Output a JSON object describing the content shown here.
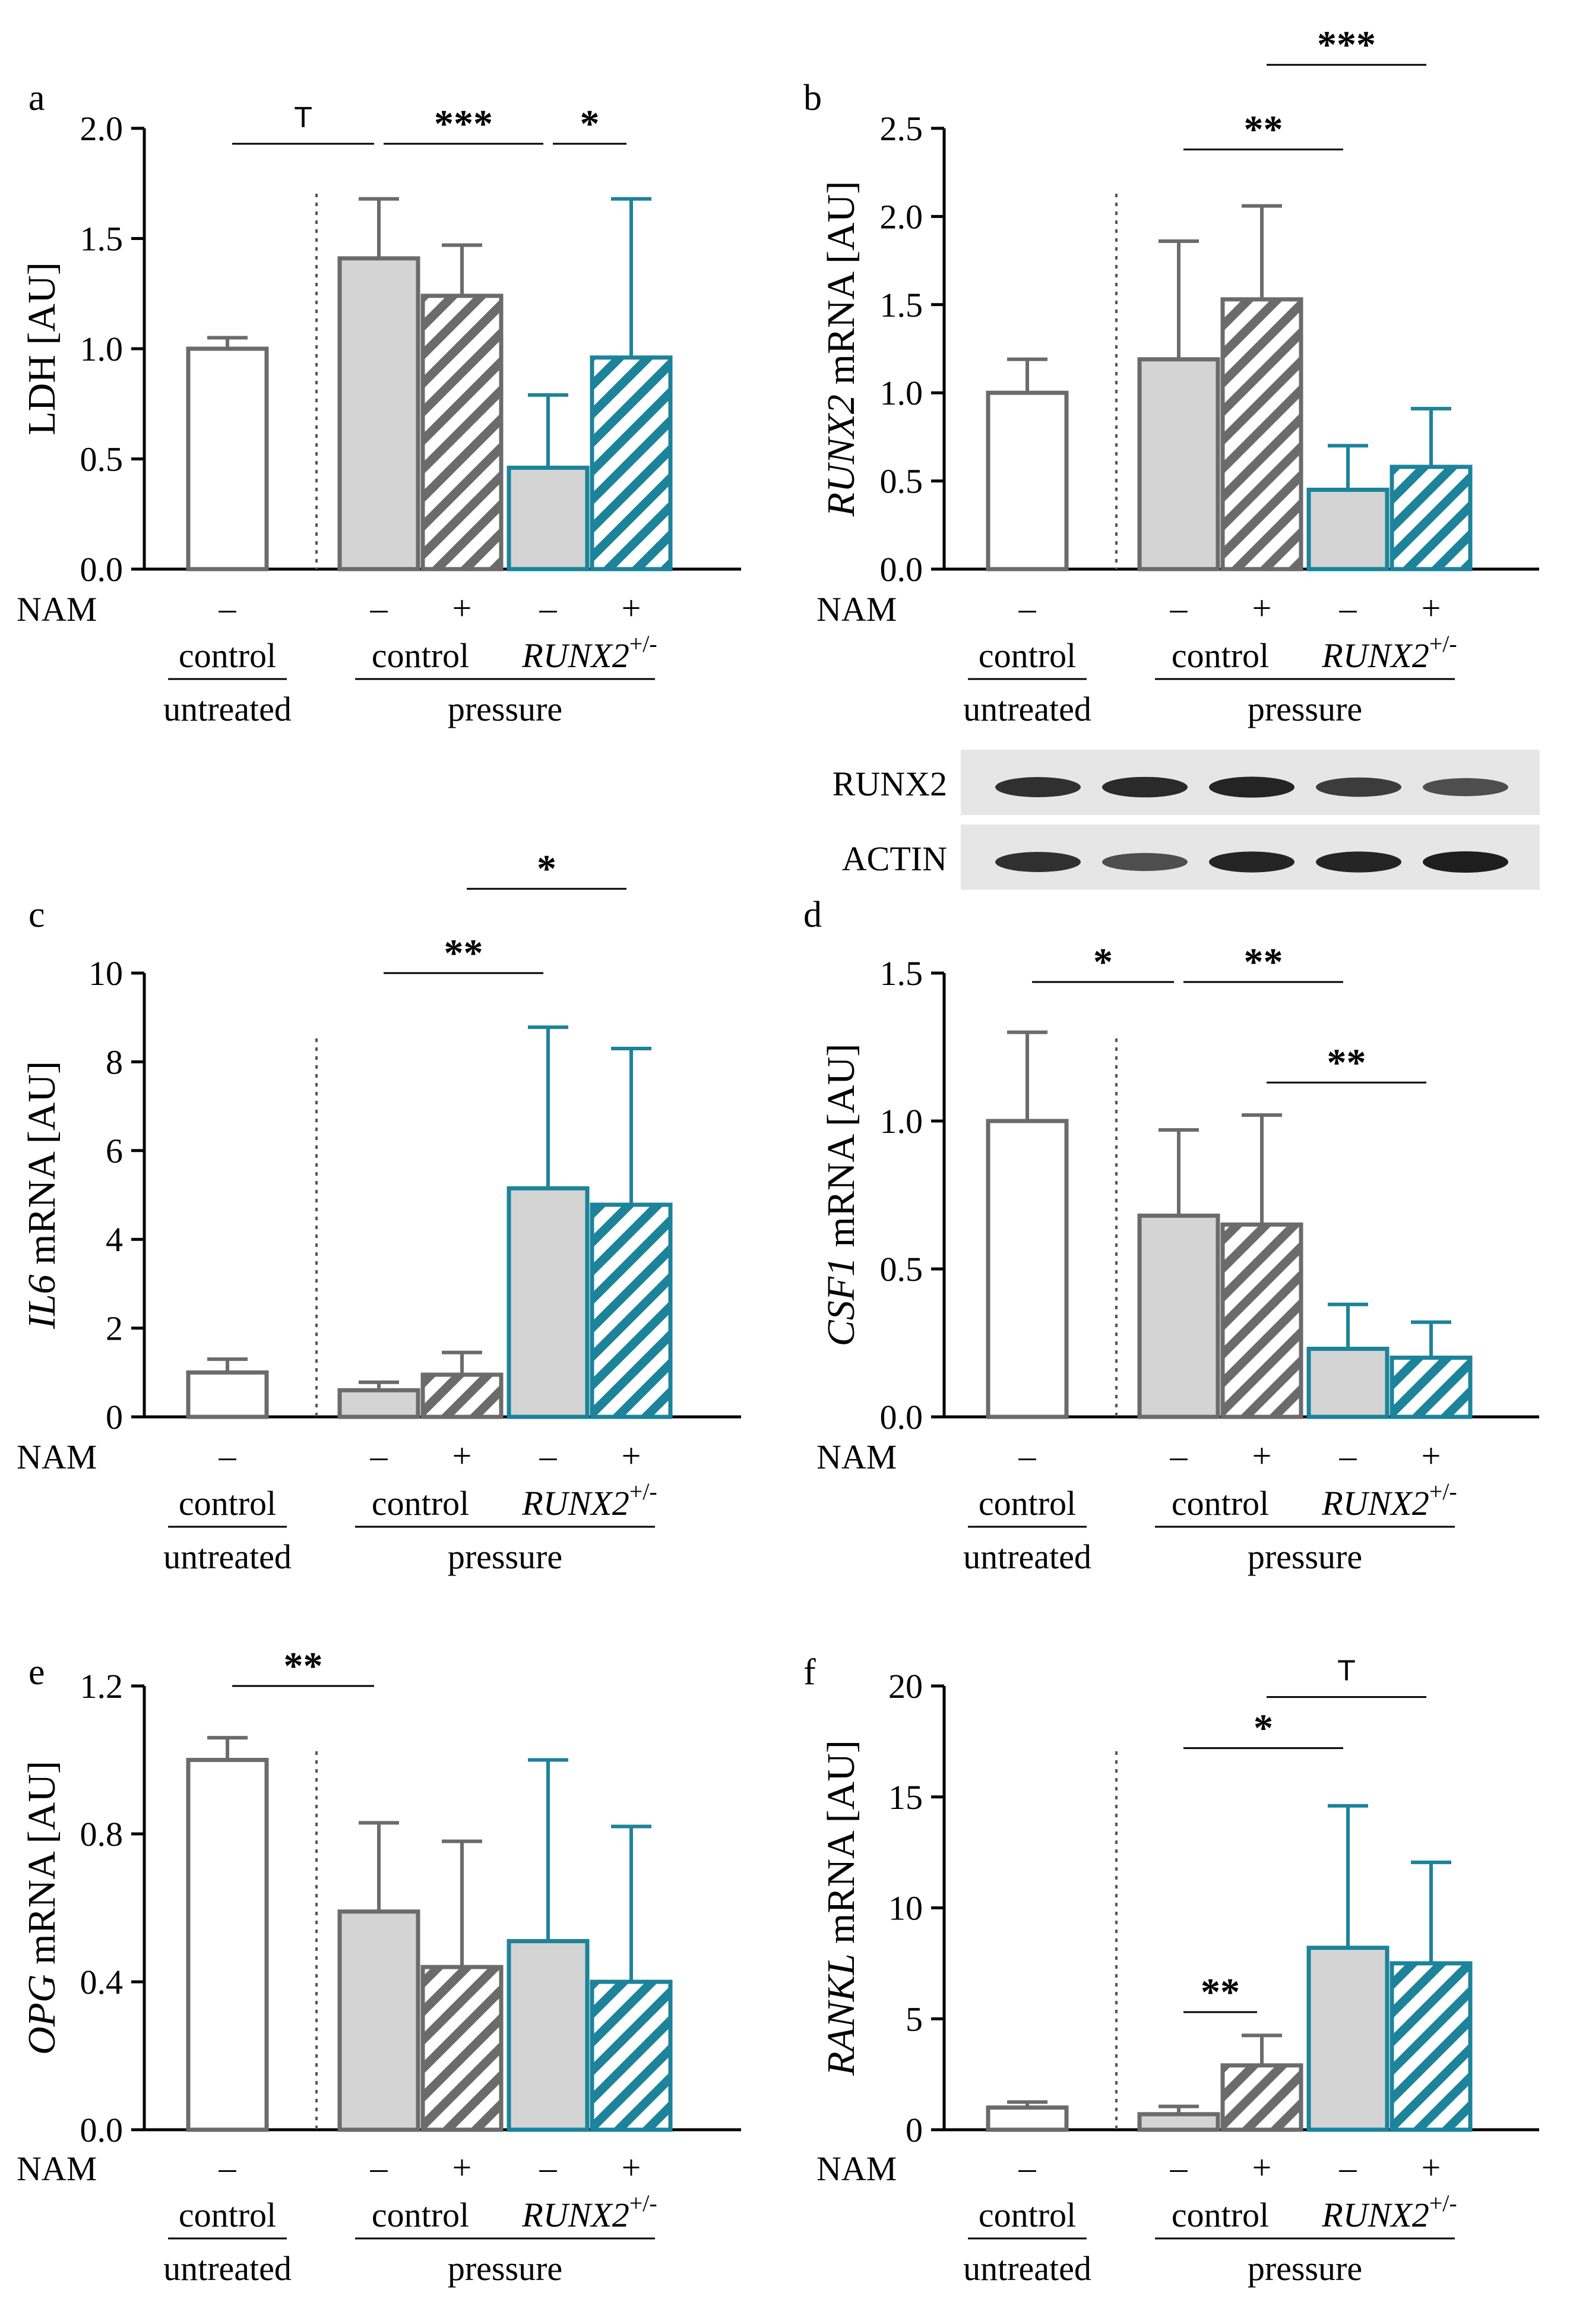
{
  "figure": {
    "colors": {
      "axis": "#000000",
      "control_edge": "#6b6b6b",
      "runx2_edge": "#1c839a",
      "bar_fill": "#d4d4d4",
      "open_fill": "#ffffff",
      "hatch_control": "#6b6b6b",
      "hatch_runx2": "#1c839a"
    },
    "group_labels": {
      "nam": "NAM",
      "minus": "–",
      "plus": "+",
      "control": "control",
      "untreated": "untreated",
      "pressure": "pressure",
      "runx2_base": "RUNX2",
      "runx2_sup": "+/-"
    },
    "blot": {
      "labels": [
        "RUNX2",
        "ACTIN"
      ],
      "band_intensity": [
        [
          0.85,
          0.9,
          0.95,
          0.75,
          0.6
        ],
        [
          0.85,
          0.6,
          0.95,
          0.95,
          1.0
        ]
      ]
    }
  },
  "chart_data": [
    {
      "panel": "a",
      "type": "bar",
      "ylabel_italic": "",
      "ylabel_plain": "LDH [AU]",
      "ylim": [
        0,
        2.0
      ],
      "yticks": [
        "0.0",
        "0.5",
        "1.0",
        "1.5",
        "2.0"
      ],
      "categories": [
        "control untreated",
        "control pressure –NAM",
        "control pressure +NAM",
        "RUNX2+/- pressure –NAM",
        "RUNX2+/- pressure +NAM"
      ],
      "values": [
        1.0,
        1.41,
        1.24,
        0.46,
        0.96
      ],
      "errors": [
        0.05,
        0.27,
        0.23,
        0.33,
        0.72
      ],
      "significance": [
        {
          "label": "T",
          "from": 0,
          "to": 1,
          "y": 1.93
        },
        {
          "label": "***",
          "from": 1,
          "to": 3,
          "y": 1.93
        },
        {
          "label": "*",
          "from": 3,
          "to": 4,
          "y": 1.93
        }
      ]
    },
    {
      "panel": "b",
      "type": "bar",
      "ylabel_italic": "RUNX2",
      "ylabel_plain": " mRNA [AU]",
      "ylim": [
        0,
        2.5
      ],
      "yticks": [
        "0.0",
        "0.5",
        "1.0",
        "1.5",
        "2.0",
        "2.5"
      ],
      "categories": [
        "control untreated",
        "control pressure –NAM",
        "control pressure +NAM",
        "RUNX2+/- pressure –NAM",
        "RUNX2+/- pressure +NAM"
      ],
      "values": [
        1.0,
        1.19,
        1.53,
        0.45,
        0.58
      ],
      "errors": [
        0.19,
        0.67,
        0.53,
        0.25,
        0.33
      ],
      "significance": [
        {
          "label": "***",
          "from": 2,
          "to": 4,
          "y": 2.86
        },
        {
          "label": "**",
          "from": 1,
          "to": 3,
          "y": 2.38
        }
      ]
    },
    {
      "panel": "c",
      "type": "bar",
      "ylabel_italic": "IL6",
      "ylabel_plain": " mRNA [AU]",
      "ylim": [
        0,
        10
      ],
      "yticks": [
        "0",
        "2",
        "4",
        "6",
        "8",
        "10"
      ],
      "categories": [
        "control untreated",
        "control pressure –NAM",
        "control pressure +NAM",
        "RUNX2+/- pressure –NAM",
        "RUNX2+/- pressure +NAM"
      ],
      "values": [
        1.0,
        0.6,
        0.95,
        5.15,
        4.78
      ],
      "errors": [
        0.3,
        0.18,
        0.5,
        3.63,
        3.52
      ],
      "significance": [
        {
          "label": "*",
          "from": 2,
          "to": 4,
          "y": 11.9
        },
        {
          "label": "**",
          "from": 1,
          "to": 3,
          "y": 10.0
        }
      ]
    },
    {
      "panel": "d",
      "type": "bar",
      "ylabel_italic": "CSF1",
      "ylabel_plain": " mRNA [AU]",
      "ylim": [
        0,
        1.5
      ],
      "yticks": [
        "0.0",
        "0.5",
        "1.0",
        "1.5"
      ],
      "categories": [
        "control untreated",
        "control pressure –NAM",
        "control pressure +NAM",
        "RUNX2+/- pressure –NAM",
        "RUNX2+/- pressure +NAM"
      ],
      "values": [
        1.0,
        0.68,
        0.65,
        0.23,
        0.2
      ],
      "errors": [
        0.3,
        0.29,
        0.37,
        0.15,
        0.12
      ],
      "significance": [
        {
          "label": "*",
          "from": 0,
          "to": 1,
          "y": 1.47
        },
        {
          "label": "**",
          "from": 1,
          "to": 3,
          "y": 1.47
        },
        {
          "label": "**",
          "from": 2,
          "to": 4,
          "y": 1.13
        }
      ]
    },
    {
      "panel": "e",
      "type": "bar",
      "ylabel_italic": "OPG",
      "ylabel_plain": " mRNA [AU]",
      "ylim": [
        0,
        1.2
      ],
      "yticks": [
        "0.0",
        "0.4",
        "0.8",
        "1.2"
      ],
      "categories": [
        "control untreated",
        "control pressure –NAM",
        "control pressure +NAM",
        "RUNX2+/- pressure –NAM",
        "RUNX2+/- pressure +NAM"
      ],
      "values": [
        1.0,
        0.59,
        0.44,
        0.51,
        0.4
      ],
      "errors": [
        0.06,
        0.24,
        0.34,
        0.49,
        0.42
      ],
      "significance": [
        {
          "label": "**",
          "from": 0,
          "to": 1,
          "y": 1.2
        }
      ]
    },
    {
      "panel": "f",
      "type": "bar",
      "ylabel_italic": "RANKL",
      "ylabel_plain": " mRNA [AU]",
      "ylim": [
        0,
        20
      ],
      "yticks": [
        "0",
        "5",
        "10",
        "15",
        "20"
      ],
      "categories": [
        "control untreated",
        "control pressure –NAM",
        "control pressure +NAM",
        "RUNX2+/- pressure –NAM",
        "RUNX2+/- pressure +NAM"
      ],
      "values": [
        1.0,
        0.7,
        2.9,
        8.2,
        7.5
      ],
      "errors": [
        0.25,
        0.35,
        1.35,
        6.4,
        4.55
      ],
      "significance": [
        {
          "label": "T",
          "from": 2,
          "to": 4,
          "y": 19.5
        },
        {
          "label": "*",
          "from": 1,
          "to": 3,
          "y": 17.2
        },
        {
          "label": "**",
          "from": 1,
          "to": 2,
          "y": 5.3
        }
      ]
    }
  ]
}
